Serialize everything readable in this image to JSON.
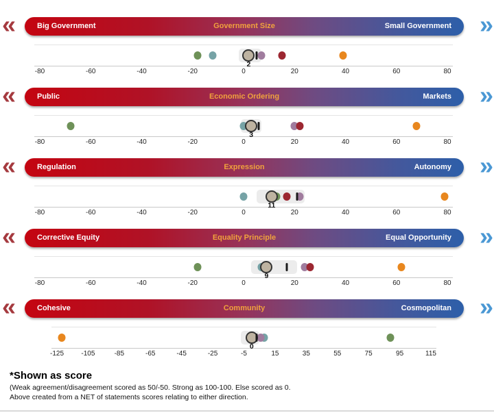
{
  "icons": {
    "left_chevrons": "«",
    "right_chevrons": "»"
  },
  "colors": {
    "banner_red": "#c40511",
    "banner_blue": "#2d5fa9",
    "banner_title_orange": "#f0a23d",
    "chevron_red": "#a53a3f",
    "chevron_blue": "#4b98d4",
    "green": "#6e9158",
    "teal": "#76a3a6",
    "mauve": "#a07c9e",
    "dark_red": "#9c2731",
    "orange": "#e8871e",
    "main_fill": "#beb3a1",
    "main_stroke": "#333333",
    "tick_bar": "#1b1b1b",
    "band": "#ececec"
  },
  "footer": {
    "title": "*Shown as score",
    "line1": "(Weak agreement/disagreement scored as 50/-50. Strong as 100-100. Else scored as 0.",
    "line2": "Above created from a NET of statements scores relating to either direction."
  },
  "chart_data": {
    "type": "dot_plot",
    "sections": [
      {
        "left": "Big Government",
        "title": "Government Size",
        "right": "Small Government",
        "axis": {
          "min": -80,
          "max": 80,
          "ticks": [
            -80,
            -60,
            -40,
            -20,
            0,
            20,
            40,
            60,
            80
          ]
        },
        "band": [
          -2,
          7
        ],
        "score": 2,
        "score_label": "2",
        "points": [
          {
            "type": "dot",
            "color": "green",
            "value": -18
          },
          {
            "type": "dot",
            "color": "teal",
            "value": -12
          },
          {
            "type": "main",
            "value": 2
          },
          {
            "type": "tick",
            "value": 5
          },
          {
            "type": "dot",
            "color": "mauve",
            "value": 7
          },
          {
            "type": "dot",
            "color": "dark_red",
            "value": 15
          },
          {
            "type": "dot",
            "color": "orange",
            "value": 39
          }
        ]
      },
      {
        "left": "Public",
        "title": "Economic Ordering",
        "right": "Markets",
        "axis": {
          "min": -80,
          "max": 80,
          "ticks": [
            -80,
            -60,
            -40,
            -20,
            0,
            20,
            40,
            60,
            80
          ]
        },
        "band": [
          -1,
          7
        ],
        "score": 3,
        "score_label": "3",
        "points": [
          {
            "type": "dot",
            "color": "green",
            "value": -68
          },
          {
            "type": "dot",
            "color": "teal",
            "value": 0
          },
          {
            "type": "main",
            "value": 3
          },
          {
            "type": "tick",
            "value": 6
          },
          {
            "type": "dot",
            "color": "mauve",
            "value": 20
          },
          {
            "type": "dot",
            "color": "dark_red",
            "value": 22
          },
          {
            "type": "dot",
            "color": "orange",
            "value": 68
          }
        ]
      },
      {
        "left": "Regulation",
        "title": "Expression",
        "right": "Autonomy",
        "axis": {
          "min": -80,
          "max": 80,
          "ticks": [
            -80,
            -60,
            -40,
            -20,
            0,
            20,
            40,
            60,
            80
          ]
        },
        "band": [
          5,
          24
        ],
        "score": 11,
        "score_label": "11",
        "points": [
          {
            "type": "dot",
            "color": "teal",
            "value": 0
          },
          {
            "type": "dot",
            "color": "green",
            "value": 13
          },
          {
            "type": "main",
            "value": 11
          },
          {
            "type": "dot",
            "color": "dark_red",
            "value": 17
          },
          {
            "type": "dot",
            "color": "mauve",
            "value": 22
          },
          {
            "type": "tick",
            "value": 21
          },
          {
            "type": "dot",
            "color": "orange",
            "value": 79
          }
        ]
      },
      {
        "left": "Corrective Equity",
        "title": "Equality Principle",
        "right": "Equal Opportunity",
        "axis": {
          "min": -80,
          "max": 80,
          "ticks": [
            -80,
            -60,
            -40,
            -20,
            0,
            20,
            40,
            60,
            80
          ]
        },
        "band": [
          3,
          21
        ],
        "score": 9,
        "score_label": "9",
        "points": [
          {
            "type": "dot",
            "color": "green",
            "value": -18
          },
          {
            "type": "dot",
            "color": "teal",
            "value": 7
          },
          {
            "type": "main",
            "value": 9
          },
          {
            "type": "tick",
            "value": 17
          },
          {
            "type": "dot",
            "color": "mauve",
            "value": 24
          },
          {
            "type": "dot",
            "color": "dark_red",
            "value": 26
          },
          {
            "type": "dot",
            "color": "orange",
            "value": 62
          }
        ]
      },
      {
        "left": "Cohesive",
        "title": "Community",
        "right": "Cosmopolitan",
        "axis": {
          "min": -125,
          "max": 115,
          "ticks": [
            -125,
            -105,
            -85,
            -65,
            -45,
            -25,
            -5,
            15,
            35,
            55,
            75,
            95,
            115
          ]
        },
        "band": [
          -7,
          5
        ],
        "score": 0,
        "score_label": "0",
        "points": [
          {
            "type": "dot",
            "color": "orange",
            "value": -122
          },
          {
            "type": "dot",
            "color": "teal",
            "value": 8
          },
          {
            "type": "dot",
            "color": "mauve",
            "value": 6
          },
          {
            "type": "main",
            "value": 0
          },
          {
            "type": "tick",
            "value": 3
          },
          {
            "type": "dot",
            "color": "green",
            "value": 89
          }
        ]
      }
    ]
  }
}
